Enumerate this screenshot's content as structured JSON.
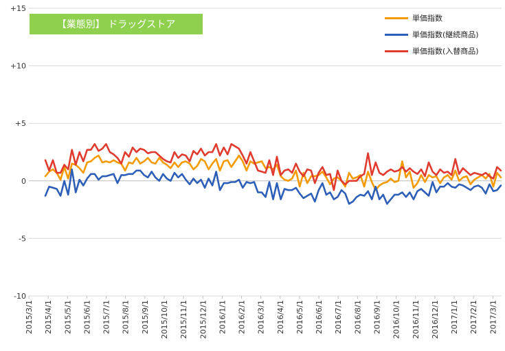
{
  "chart_data": {
    "type": "line",
    "title": "【業態別】 ドラッグストア",
    "title_bg": "#8FD14F",
    "ylim": [
      -10,
      15
    ],
    "yticks": [
      -10,
      -5,
      0,
      5,
      10,
      15
    ],
    "ytick_labels": [
      "-10",
      "-5",
      "0",
      "+5",
      "+10",
      "+15"
    ],
    "grid": "horizontal",
    "legend_position": "top-right",
    "x_tick_labels": [
      "2015/3/1",
      "2015/4/1",
      "2015/5/1",
      "2015/6/1",
      "2015/7/1",
      "2015/8/1",
      "2015/9/1",
      "2015/10/1",
      "2015/11/1",
      "2015/12/1",
      "2016/1/1",
      "2016/2/1",
      "2016/3/1",
      "2016/4/1",
      "2016/5/1",
      "2016/6/1",
      "2016/7/1",
      "2016/8/1",
      "2016/9/1",
      "2016/10/1",
      "2016/11/1",
      "2016/12/1",
      "2017/1/1",
      "2017/2/1",
      "2017/3/1"
    ],
    "series": [
      {
        "name": "単価指数",
        "color": "#F59A00",
        "values": [
          0.4,
          0.8,
          1.0,
          0.7,
          0.1,
          1.2,
          0.2,
          1.5,
          1.4,
          1.1,
          0.7,
          1.6,
          1.7,
          2.0,
          2.2,
          1.6,
          1.7,
          1.6,
          1.8,
          1.6,
          1.5,
          0.9,
          1.6,
          1.5,
          2.0,
          1.5,
          1.7,
          2.0,
          1.6,
          1.5,
          2.0,
          1.6,
          1.4,
          1.1,
          1.6,
          1.2,
          1.6,
          1.7,
          1.5,
          1.0,
          1.3,
          1.9,
          1.7,
          1.0,
          1.5,
          1.9,
          0.9,
          1.7,
          1.8,
          1.2,
          1.7,
          2.2,
          1.7,
          0.9,
          1.7,
          1.5,
          1.6,
          1.7,
          1.1,
          1.2,
          1.0,
          1.4,
          0.4,
          0.1,
          0.0,
          0.2,
          0.9,
          -0.5,
          0.7,
          -0.2,
          0.4,
          0.4,
          0.5,
          0.8,
          0.3,
          -0.3,
          0.2,
          0.3,
          0.0,
          -0.5,
          0.7,
          0.2,
          0.3,
          0.5,
          -0.5,
          0.8,
          -0.1,
          -0.8,
          -0.4,
          -0.2,
          -0.1,
          0.2,
          -0.1,
          0.0,
          1.7,
          0.3,
          0.8,
          -0.6,
          -0.2,
          0.5,
          -0.1,
          0.5,
          0.3,
          0.4,
          -0.2,
          0.3,
          0.5,
          0.1,
          0.9,
          0.0,
          0.3,
          0.4,
          -0.3,
          0.1,
          0.3,
          0.5,
          0.2,
          0.6,
          -0.5,
          0.7,
          0.3
        ]
      },
      {
        "name": "単価指数(継続商品)",
        "color": "#2E5FB8",
        "values": [
          -1.3,
          -0.5,
          -0.6,
          -0.7,
          -1.3,
          0.0,
          -1.2,
          1.0,
          -1.0,
          0.1,
          -0.4,
          0.2,
          0.6,
          0.6,
          0.1,
          0.4,
          0.4,
          0.5,
          0.6,
          -0.2,
          0.5,
          0.5,
          0.6,
          0.6,
          0.9,
          0.9,
          0.5,
          0.3,
          0.8,
          0.3,
          0.0,
          0.6,
          0.2,
          0.0,
          0.7,
          0.3,
          0.6,
          0.1,
          -0.3,
          0.2,
          -0.2,
          0.1,
          -0.6,
          0.2,
          -0.4,
          0.8,
          -0.8,
          -0.2,
          -0.2,
          -0.1,
          -0.1,
          0.1,
          -0.6,
          -0.1,
          -0.2,
          -0.1,
          -1.0,
          -1.0,
          -1.4,
          -0.1,
          -1.6,
          -0.2,
          -1.6,
          -0.7,
          -0.8,
          -0.8,
          -0.6,
          -1.1,
          -1.5,
          -1.3,
          -1.1,
          -1.8,
          -0.8,
          -0.2,
          -1.2,
          -1.0,
          -1.6,
          -1.4,
          -0.8,
          -1.1,
          -2.0,
          -1.8,
          -1.4,
          -1.2,
          -1.3,
          -0.9,
          -1.6,
          -0.5,
          -1.6,
          -1.2,
          -2.0,
          -1.6,
          -1.2,
          -1.2,
          -1.0,
          -1.4,
          -1.0,
          -1.6,
          -0.9,
          -0.7,
          -1.0,
          -1.3,
          -0.1,
          -1.0,
          -0.5,
          -0.5,
          -0.2,
          -0.5,
          -0.6,
          -0.3,
          -0.4,
          -0.6,
          -0.8,
          -0.5,
          -0.4,
          -0.6,
          -1.1,
          -0.3,
          -0.9,
          -0.8,
          -0.4
        ]
      },
      {
        "name": "単価指数(入替商品)",
        "color": "#E03B2E",
        "values": [
          1.8,
          0.9,
          1.8,
          0.7,
          0.7,
          1.4,
          1.0,
          2.7,
          1.4,
          2.5,
          1.7,
          2.7,
          2.7,
          3.2,
          2.6,
          2.8,
          3.2,
          2.5,
          2.3,
          2.0,
          1.5,
          2.5,
          2.1,
          2.9,
          2.5,
          2.8,
          2.7,
          2.4,
          2.5,
          2.5,
          2.2,
          1.9,
          1.7,
          1.6,
          2.5,
          2.0,
          2.3,
          2.2,
          1.7,
          2.6,
          2.3,
          2.8,
          2.2,
          2.5,
          2.5,
          3.2,
          2.2,
          2.9,
          2.3,
          3.2,
          3.0,
          2.8,
          2.2,
          1.5,
          2.5,
          1.7,
          0.9,
          0.8,
          0.7,
          1.8,
          0.5,
          2.1,
          0.5,
          0.9,
          1.0,
          0.7,
          1.5,
          0.8,
          0.4,
          1.0,
          0.9,
          -0.2,
          0.7,
          1.2,
          0.5,
          0.6,
          -0.8,
          0.9,
          0.0,
          -0.3,
          0.0,
          0.0,
          0.0,
          0.4,
          0.6,
          2.4,
          0.5,
          1.6,
          0.7,
          0.5,
          0.8,
          1.0,
          0.8,
          0.9,
          1.2,
          0.8,
          1.1,
          0.8,
          0.6,
          1.0,
          0.4,
          1.6,
          0.8,
          0.5,
          1.0,
          0.7,
          0.8,
          0.5,
          1.9,
          0.6,
          1.1,
          0.8,
          0.5,
          0.7,
          0.6,
          0.5,
          0.7,
          0.4,
          0.2,
          1.2,
          0.9
        ]
      }
    ]
  }
}
